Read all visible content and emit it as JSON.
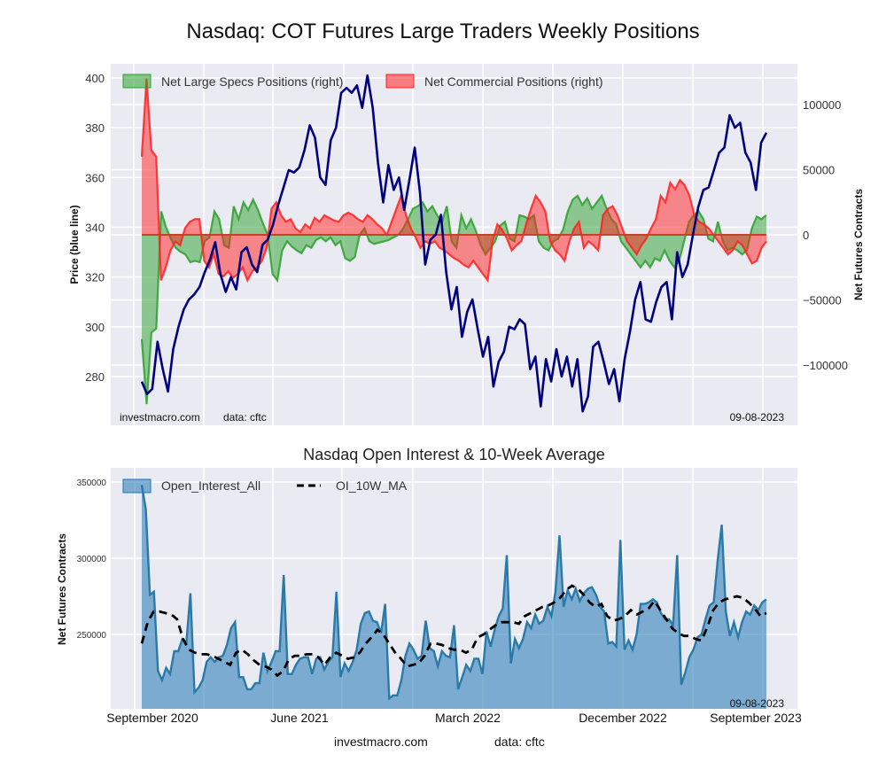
{
  "chart_data": [
    {
      "type": "line",
      "title": "Nasdaq: COT Futures Large Traders Weekly Positions",
      "xlabel": "",
      "ylabel": "Price (blue line)",
      "ylabel_right": "Net Futures Contracts",
      "ylim": [
        262,
        405
      ],
      "ylim_right": [
        -145000,
        130000
      ],
      "grid": true,
      "legend_position": "top-left",
      "y_ticks": [
        "280",
        "300",
        "320",
        "340",
        "360",
        "380",
        "400"
      ],
      "y_ticks_right": [
        "−100000",
        "−50000",
        "0",
        "50000",
        "100000"
      ],
      "x_range": [
        "2020-09-01",
        "2023-09-05"
      ],
      "series": [
        {
          "name": "Price",
          "color": "#00007f",
          "values": [
            278,
            273,
            275,
            294,
            283,
            274,
            291,
            300,
            307,
            311,
            313,
            316,
            322,
            327,
            334,
            321,
            314,
            320,
            315,
            330,
            332,
            325,
            322,
            333,
            335,
            341,
            349,
            356,
            363,
            362,
            364,
            371,
            381,
            376,
            360,
            357,
            375,
            380,
            394,
            396,
            394,
            397,
            388,
            401,
            388,
            366,
            350,
            365,
            355,
            360,
            347,
            359,
            372,
            354,
            325,
            335,
            337,
            345,
            322,
            307,
            316,
            296,
            306,
            311,
            299,
            288,
            296,
            276,
            286,
            290,
            300,
            299,
            303,
            301,
            283,
            288,
            268,
            287,
            278,
            291,
            280,
            288,
            276,
            287,
            266,
            272,
            292,
            294,
            286,
            277,
            283,
            270,
            287,
            298,
            311,
            318,
            303,
            302,
            310,
            316,
            318,
            303,
            330,
            320,
            325,
            337,
            348,
            355,
            356,
            363,
            370,
            372,
            385,
            380,
            382,
            370,
            366,
            355,
            374,
            378
          ],
          "x_dates_note": "weekly, evenly spaced"
        },
        {
          "name": "Net Large Specs Positions (right)",
          "color": "#2ca02c",
          "values": [
            -80000,
            -130000,
            -75000,
            -72000,
            18000,
            6000,
            -3000,
            -10000,
            -13000,
            -15000,
            -21000,
            -20000,
            -21000,
            -5000,
            -2000,
            18000,
            12000,
            -8000,
            -10000,
            22000,
            12000,
            25000,
            19000,
            27000,
            19000,
            9000,
            0,
            -30000,
            -35000,
            -12000,
            -5000,
            -9000,
            -12000,
            -14000,
            -8000,
            -10000,
            -4000,
            -2000,
            -5000,
            -2000,
            -8000,
            -5000,
            -18000,
            -20000,
            -17000,
            0,
            5000,
            -5000,
            -7000,
            -6000,
            -5000,
            -4000,
            -2000,
            0,
            5000,
            12000,
            20000,
            22000,
            25000,
            18000,
            22000,
            15000,
            10000,
            22000,
            -5000,
            -10000,
            15000,
            5000,
            12000,
            3000,
            -8000,
            -15000,
            -10000,
            -5000,
            7000,
            10000,
            -3000,
            -5000,
            15000,
            14000,
            12000,
            15000,
            -5000,
            -10000,
            -12000,
            -5000,
            -3000,
            4000,
            18000,
            27000,
            30000,
            23000,
            28000,
            20000,
            25000,
            30000,
            20000,
            12000,
            8000,
            -5000,
            -10000,
            -15000,
            -20000,
            -25000,
            -20000,
            -25000,
            -18000,
            -20000,
            -12000,
            -20000,
            -25000,
            -20000,
            -5000,
            10000,
            15000,
            18000,
            12000,
            -3000,
            -5000,
            10000,
            -5000,
            -12000,
            -10000,
            -12000,
            -15000,
            -12000,
            5000,
            14000,
            12000,
            15000
          ],
          "x_dates_note": "weekly, evenly spaced"
        },
        {
          "name": "Net Commercial Positions (right)",
          "color": "#ff2020",
          "values": [
            60000,
            120000,
            65000,
            60000,
            -35000,
            -25000,
            -12000,
            -5000,
            -8000,
            5000,
            10000,
            12000,
            12000,
            -20000,
            -25000,
            -15000,
            -30000,
            -32000,
            -28000,
            -33000,
            -30000,
            -25000,
            -35000,
            -28000,
            -25000,
            -20000,
            -10000,
            20000,
            25000,
            15000,
            10000,
            12000,
            5000,
            2000,
            8000,
            5000,
            13000,
            10000,
            15000,
            13000,
            11000,
            10000,
            15000,
            17000,
            15000,
            12000,
            10000,
            15000,
            12000,
            8000,
            5000,
            0,
            10000,
            20000,
            30000,
            15000,
            5000,
            -2000,
            -10000,
            -5000,
            -7000,
            -5000,
            -10000,
            -12000,
            -15000,
            -18000,
            -20000,
            -23000,
            -25000,
            -20000,
            -25000,
            -30000,
            -35000,
            -5000,
            8000,
            4000,
            -3000,
            -12000,
            -8000,
            -5000,
            8000,
            20000,
            30000,
            25000,
            18000,
            -5000,
            -12000,
            -15000,
            -20000,
            -5000,
            5000,
            10000,
            -10000,
            -5000,
            -8000,
            -12000,
            15000,
            20000,
            22000,
            15000,
            5000,
            -5000,
            -10000,
            -15000,
            -8000,
            -3000,
            5000,
            12000,
            30000,
            25000,
            40000,
            35000,
            42000,
            38000,
            30000,
            15000,
            10000,
            8000,
            5000,
            0,
            -5000,
            -10000,
            -15000,
            -12000,
            -5000,
            -8000,
            -15000,
            -22000,
            -20000,
            -10000,
            -5000
          ],
          "x_dates_note": "weekly, evenly spaced"
        }
      ],
      "annotations": [
        "investmacro.com    data: cftc",
        "09-08-2023"
      ]
    },
    {
      "type": "area",
      "title": "Nasdaq Open Interest & 10-Week Average",
      "xlabel": "",
      "ylabel": "Net Futures Contracts",
      "ylim": [
        201500,
        359000
      ],
      "grid": true,
      "legend_position": "top-left",
      "y_ticks": [
        "250000",
        "300000",
        "350000"
      ],
      "x_ticks": [
        "September 2020",
        "June 2021",
        "March 2022",
        "December 2022",
        "September 2023"
      ],
      "x_range": [
        "2020-09-01",
        "2023-09-05"
      ],
      "series": [
        {
          "name": "Open_Interest_All",
          "color": "#1f77b4",
          "values": [
            348000,
            332000,
            276000,
            278000,
            226000,
            220000,
            228000,
            224000,
            239000,
            239000,
            247000,
            245000,
            277000,
            212000,
            215000,
            220000,
            232000,
            235000,
            232000,
            235000,
            236000,
            243000,
            254000,
            258000,
            222000,
            222000,
            214000,
            214000,
            218000,
            218000,
            238000,
            226000,
            232000,
            239000,
            239000,
            289000,
            224000,
            224000,
            230000,
            234000,
            235000,
            235000,
            224000,
            234000,
            235000,
            227000,
            232000,
            235000,
            278000,
            222000,
            231000,
            226000,
            232000,
            240000,
            257000,
            264000,
            265000,
            259000,
            258000,
            251000,
            270000,
            208000,
            210000,
            210000,
            220000,
            236000,
            244000,
            240000,
            234000,
            236000,
            259000,
            241000,
            239000,
            229000,
            239000,
            236000,
            235000,
            256000,
            214000,
            222000,
            230000,
            226000,
            234000,
            234000,
            224000,
            252000,
            242000,
            253000,
            262000,
            267000,
            302000,
            231000,
            247000,
            241000,
            247000,
            258000,
            254000,
            263000,
            257000,
            259000,
            268000,
            262000,
            278000,
            315000,
            268000,
            279000,
            273000,
            280000,
            272000,
            277000,
            280000,
            281000,
            276000,
            268000,
            265000,
            244000,
            245000,
            242000,
            312000,
            240000,
            246000,
            240000,
            250000,
            270000,
            270000,
            271000,
            273000,
            271000,
            264000,
            260000,
            260000,
            256000,
            302000,
            217000,
            225000,
            235000,
            240000,
            248000,
            250000,
            260000,
            269000,
            271000,
            299000,
            322000,
            265000,
            249000,
            258000,
            248000,
            258000,
            265000,
            263000,
            269000,
            266000,
            271000,
            273000
          ],
          "x_dates_note": "weekly, evenly spaced"
        },
        {
          "name": "OI_10W_MA",
          "color": "#000000",
          "dashed": true,
          "values": [
            244000,
            258000,
            265000,
            265000,
            264000,
            263000,
            260000,
            247000,
            240000,
            238000,
            237000,
            237000,
            236000,
            234000,
            232000,
            230000,
            238000,
            240000,
            237000,
            233000,
            230000,
            229000,
            227000,
            223000,
            226000,
            234000,
            236000,
            236000,
            237000,
            237000,
            235000,
            230000,
            235000,
            238000,
            236000,
            234000,
            235000,
            238000,
            244000,
            248000,
            253000,
            250000,
            244000,
            238000,
            234000,
            229000,
            230000,
            231000,
            236000,
            244000,
            244000,
            243000,
            241000,
            240000,
            240000,
            238000,
            240000,
            248000,
            250000,
            253000,
            256000,
            258000,
            258000,
            258000,
            257000,
            262000,
            264000,
            266000,
            268000,
            269000,
            271000,
            274000,
            279000,
            282000,
            280000,
            276000,
            271000,
            268000,
            270000,
            262000,
            259000,
            260000,
            262000,
            266000,
            263000,
            265000,
            267000,
            272000,
            266000,
            260000,
            254000,
            251000,
            249000,
            249000,
            247000,
            246000,
            255000,
            266000,
            271000,
            273000,
            274000,
            275000,
            274000,
            271000,
            267000,
            262000,
            264000
          ],
          "x_dates_note": "weekly, evenly spaced"
        }
      ],
      "annotations": [
        "09-08-2023"
      ]
    }
  ],
  "footer": {
    "site": "investmacro.com",
    "source": "data: cftc"
  },
  "top_panel": {
    "legend": [
      "Net Large Specs Positions (right)",
      "Net Commercial Positions (right)"
    ],
    "watermark_site": "investmacro.com",
    "watermark_source": "data: cftc",
    "date": "09-08-2023"
  },
  "bottom_panel": {
    "legend": [
      "Open_Interest_All",
      "OI_10W_MA"
    ],
    "date": "09-08-2023"
  },
  "colors": {
    "plot_bg": "#eaeaf2",
    "price": "#00007f",
    "specs": "#2ca02c",
    "commercial": "#ff2020",
    "oi": "#1f77b4"
  }
}
